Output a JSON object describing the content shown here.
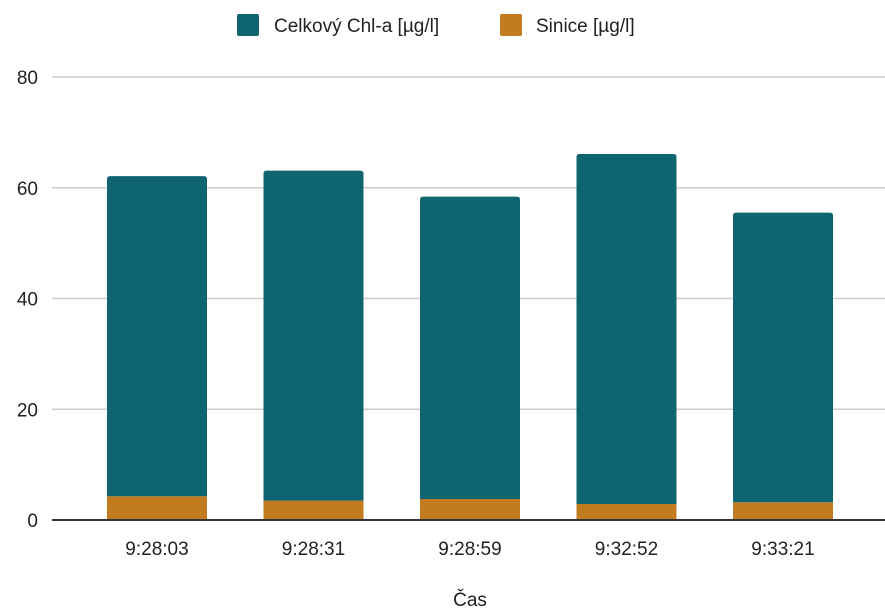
{
  "chart_data": {
    "type": "bar",
    "stacked": true,
    "categories": [
      "9:28:03",
      "9:28:31",
      "9:28:59",
      "9:32:52",
      "9:33:21"
    ],
    "series": [
      {
        "name": "Sinice [µg/l]",
        "color": "#C27B1E",
        "values": [
          4.3,
          3.5,
          3.8,
          2.9,
          3.2
        ]
      },
      {
        "name": "Celkový Chl-a  [µg/l]",
        "color": "#0F6472",
        "values": [
          57.8,
          59.6,
          54.6,
          63.2,
          52.3
        ]
      }
    ],
    "legend_order": [
      1,
      0
    ],
    "xlabel": "Čas",
    "ylabel": "",
    "ylim": [
      0,
      80
    ],
    "yticks": [
      0,
      20,
      40,
      60,
      80
    ],
    "grid": true,
    "legend_position": "top-center",
    "colors": {
      "grid": "#CCCCCC",
      "axis": "#333333",
      "text": "#222222"
    }
  }
}
